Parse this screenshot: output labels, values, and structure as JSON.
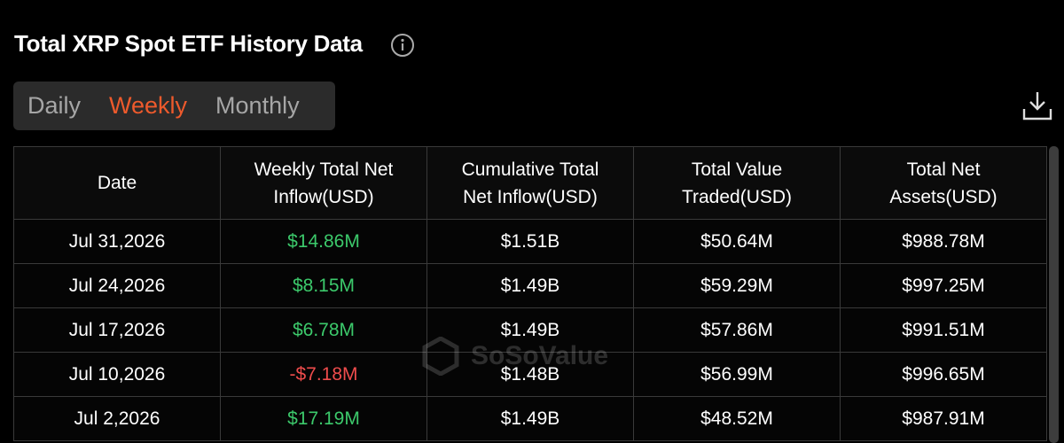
{
  "header": {
    "title": "Total XRP Spot ETF History Data"
  },
  "tabs": [
    {
      "label": "Daily",
      "active": false
    },
    {
      "label": "Weekly",
      "active": true
    },
    {
      "label": "Monthly",
      "active": false
    }
  ],
  "watermark": "SoSoValue",
  "table": {
    "columns": [
      "Date",
      "Weekly Total Net Inflow(USD)",
      "Cumulative Total Net Inflow(USD)",
      "Total Value Traded(USD)",
      "Total Net Assets(USD)"
    ],
    "rows": [
      [
        "Jul 31,2026",
        "$14.86M",
        "$1.51B",
        "$50.64M",
        "$988.78M"
      ],
      [
        "Jul 24,2026",
        "$8.15M",
        "$1.49B",
        "$59.29M",
        "$997.25M"
      ],
      [
        "Jul 17,2026",
        "$6.78M",
        "$1.49B",
        "$57.86M",
        "$991.51M"
      ],
      [
        "Jul 10,2026",
        "-$7.18M",
        "$1.48B",
        "$56.99M",
        "$996.65M"
      ],
      [
        "Jul 2,2026",
        "$17.19M",
        "$1.49B",
        "$48.52M",
        "$987.91M"
      ]
    ]
  }
}
